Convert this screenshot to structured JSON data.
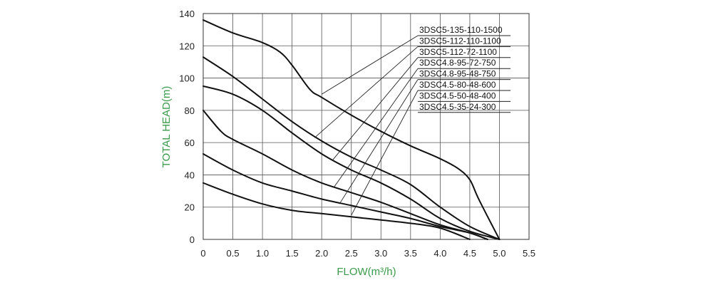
{
  "chart_data": {
    "type": "line",
    "title": "",
    "xlabel": "FLOW(m³/h)",
    "ylabel": "TOTAL HEAD(m)",
    "xlim": [
      0,
      5.5
    ],
    "ylim": [
      0,
      140
    ],
    "xticks": [
      "0",
      "0.5",
      "1.0",
      "1.5",
      "2.0",
      "2.5",
      "3.0",
      "3.5",
      "4.0",
      "4.5",
      "5.0",
      "5.5"
    ],
    "yticks": [
      "0",
      "20",
      "40",
      "60",
      "80",
      "100",
      "120",
      "140"
    ],
    "grid": true,
    "legend_placement": "top-right",
    "series": [
      {
        "name": "3DSC5-135-110-1500",
        "x": [
          0,
          0.5,
          1.0,
          1.3,
          1.5,
          1.8,
          2.0,
          2.5,
          3.0,
          3.5,
          4.0,
          4.3,
          4.5,
          4.65,
          5.0
        ],
        "y": [
          136,
          128,
          122,
          116,
          108,
          93,
          88,
          77,
          67,
          58,
          50,
          44,
          37,
          25,
          0
        ],
        "label_anchor": [
          2.0,
          90
        ]
      },
      {
        "name": "3DSC5-112-110-1100",
        "x": [
          0,
          0.5,
          1.0,
          1.5,
          2.0,
          2.5,
          3.0,
          3.5,
          4.0,
          4.5,
          5.0
        ],
        "y": [
          113,
          101,
          87,
          73,
          61,
          51,
          43,
          34,
          20,
          8,
          0
        ],
        "label_anchor": [
          1.88,
          63
        ]
      },
      {
        "name": "3DSC5-112-72-1100",
        "x": [
          0,
          0.5,
          1.0,
          1.5,
          2.0,
          2.5,
          3.0,
          3.5,
          4.0,
          4.5,
          5.0
        ],
        "y": [
          95,
          90,
          80,
          66,
          53,
          43,
          35,
          25,
          13,
          5,
          0
        ],
        "label_anchor": [
          2.18,
          49
        ]
      },
      {
        "name": "3DSC4.8-95-72-750",
        "x": [
          0,
          0.3,
          0.5,
          1.0,
          1.5,
          2.0,
          2.5,
          3.0,
          3.5,
          4.0,
          4.5,
          4.8
        ],
        "y": [
          80,
          67,
          62,
          53,
          43,
          35,
          29,
          23,
          16,
          9,
          4,
          0
        ],
        "label_anchor": [
          2.2,
          32
        ]
      },
      {
        "name": "3DSC4.8-95-48-750",
        "x": [
          0,
          0.5,
          1.0,
          1.5,
          2.0,
          2.5,
          3.0,
          3.5,
          4.0,
          4.5,
          4.8
        ],
        "y": [
          53,
          43,
          35,
          30,
          25,
          21,
          17,
          13,
          8,
          4,
          0
        ],
        "label_anchor": [
          2.3,
          22
        ]
      },
      {
        "name": "3DSC4.5-80-48-600",
        "x": [
          0,
          0.5,
          1.0,
          1.5,
          2.0,
          2.5,
          3.0,
          3.5,
          4.0,
          4.5
        ],
        "y": [
          35,
          28,
          22,
          18,
          16,
          14,
          12,
          10,
          7,
          0
        ],
        "label_anchor": [
          2.5,
          15
        ]
      }
    ],
    "legend_only_entries": [
      "3DSC4.5-50-48-400",
      "3DSC4.5-35-24-300"
    ]
  }
}
